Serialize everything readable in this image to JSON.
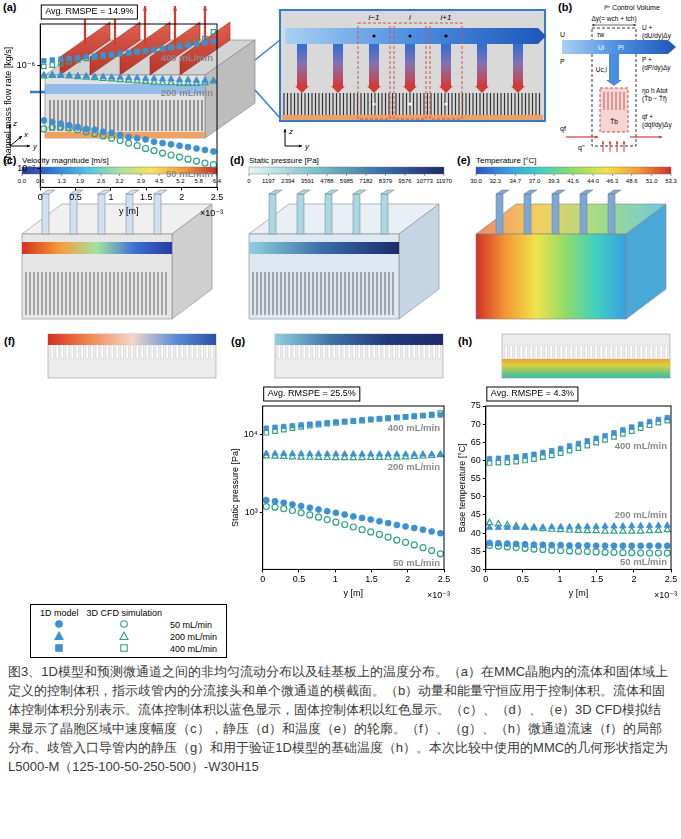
{
  "panels": {
    "a": {
      "letter": "(a)",
      "axes_3d": [
        "z",
        "x",
        "y"
      ],
      "axes_2d": [
        "z",
        "y"
      ],
      "cells": [
        "i−1",
        "i",
        "i+1"
      ]
    },
    "b": {
      "letter": "(b)",
      "title": "iᵗʰ Control Volume",
      "width": "Δy(= wch + tch)",
      "wall_shear": "τw",
      "inlet_velocity": "U",
      "outlet_velocity": "U + (dU/dy)Δy",
      "inlet_pressure": "P",
      "outlet_pressure": "P + (dP/dy)Δy",
      "cell_velocity": "Ui",
      "cell_pressure": "Pi",
      "channel_velocity": "Uc,i",
      "heat_transfer": "ηo h Atot (T̄b − T̄f)",
      "base_temperature": "T̄b",
      "inlet_heat": "qf",
      "outlet_heat": "qf + (dqf/dy)Δy",
      "heat_flux": "q''"
    },
    "c": {
      "letter": "(c)",
      "colorbar": {
        "title": "Velocity magnitude [m/s]",
        "range": [
          0,
          6.4
        ],
        "ticks": [
          {
            "value": 0,
            "label": "0.0"
          },
          0.6,
          1.3,
          1.9,
          2.6,
          3.2,
          3.9,
          4.5,
          5.2,
          5.8,
          6.4
        ]
      }
    },
    "d": {
      "letter": "(d)",
      "colorbar": {
        "title": "Static pressure [Pa]",
        "range": [
          0,
          11970
        ],
        "ticks": [
          0,
          1197,
          2394,
          3591,
          4788,
          5985,
          7182,
          8379,
          9576,
          10773,
          11970
        ]
      }
    },
    "e": {
      "letter": "(e)",
      "colorbar": {
        "title": "Temperature [°C]",
        "range": [
          30,
          53.3
        ],
        "ticks": [
          {
            "value": 30,
            "label": "30.0"
          },
          32.3,
          34.7,
          {
            "value": 37,
            "label": "37.0"
          },
          39.3,
          41.6,
          {
            "value": 44,
            "label": "44.0"
          },
          46.3,
          48.6,
          {
            "value": 51,
            "label": "51.0"
          },
          53.3
        ]
      }
    }
  },
  "chart_data": [
    {
      "type": "scatter",
      "panel": "(f)",
      "annotation": "Avg. RMSPE = 14.9%",
      "x_label": "y [m]",
      "x_unit_multiplier": "×10⁻³",
      "y_label": "Channel mass flow rate [kg/s]",
      "log": "y",
      "grid": false,
      "legend": "bottom",
      "xlim": [
        0,
        2.5
      ],
      "xticks": [
        0,
        0.5,
        1,
        1.5,
        2,
        2.5
      ],
      "ylim": [
        6.5e-08,
        2.5e-06
      ],
      "yticks": [
        {
          "value": 1e-07,
          "label": "10⁻⁷"
        },
        {
          "value": 1e-06,
          "label": "10⁻⁶"
        }
      ],
      "x": [
        0.05,
        0.17,
        0.29,
        0.41,
        0.53,
        0.65,
        0.77,
        0.89,
        1.01,
        1.13,
        1.25,
        1.37,
        1.49,
        1.61,
        1.73,
        1.85,
        1.97,
        2.09,
        2.21,
        2.33,
        2.45
      ],
      "series": [
        {
          "name": "1D model",
          "group": "50 mL/min",
          "color": "#3d8fd6",
          "marker": "circle",
          "values": [
            2.9e-07,
            2.8e-07,
            2.7e-07,
            2.6e-07,
            2.5e-07,
            2.4e-07,
            2.35e-07,
            2.25e-07,
            2.2e-07,
            2.1e-07,
            2e-07,
            1.95e-07,
            1.9e-07,
            1.8e-07,
            1.75e-07,
            1.7e-07,
            1.65e-07,
            1.6e-07,
            1.55e-07,
            1.5e-07,
            1.45e-07
          ]
        },
        {
          "name": "3D CFD simulation",
          "group": "50 mL/min",
          "color": "#2ea383",
          "marker": "open_circle",
          "values": [
            2.4e-07,
            2.5e-07,
            2.5e-07,
            2.45e-07,
            2.35e-07,
            2.25e-07,
            2.15e-07,
            2.05e-07,
            1.95e-07,
            1.85e-07,
            1.75e-07,
            1.65e-07,
            1.55e-07,
            1.48e-07,
            1.4e-07,
            1.34e-07,
            1.28e-07,
            1.22e-07,
            1.17e-07,
            1.12e-07,
            1.08e-07
          ]
        },
        {
          "name": "1D model",
          "group": "200 mL/min",
          "color": "#3d8fd6",
          "marker": "triangle",
          "values": [
            8e-07,
            8e-07,
            7.9e-07,
            7.9e-07,
            7.8e-07,
            7.8e-07,
            7.7e-07,
            7.7e-07,
            7.6e-07,
            7.6e-07,
            7.5e-07,
            7.5e-07,
            7.4e-07,
            7.4e-07,
            7.3e-07,
            7.3e-07,
            7.2e-07,
            7.2e-07,
            7.1e-07,
            7.1e-07,
            7e-07
          ]
        },
        {
          "name": "3D CFD simulation",
          "group": "200 mL/min",
          "color": "#2ea383",
          "marker": "open_triangle",
          "values": [
            7.8e-07,
            7.9e-07,
            7.9e-07,
            7.8e-07,
            7.7e-07,
            7.6e-07,
            7.5e-07,
            7.4e-07,
            7.3e-07,
            7.2e-07,
            7.1e-07,
            7e-07,
            6.9e-07,
            6.8e-07,
            6.7e-07,
            6.7e-07,
            6.6e-07,
            6.6e-07,
            6.6e-07,
            6.7e-07,
            7e-07
          ]
        },
        {
          "name": "1D model",
          "group": "400 mL/min",
          "color": "#3d8fd6",
          "marker": "square",
          "values": [
            1.1e-06,
            1.12e-06,
            1.14e-06,
            1.16e-06,
            1.18e-06,
            1.2e-06,
            1.22e-06,
            1.25e-06,
            1.27e-06,
            1.3e-06,
            1.32e-06,
            1.35e-06,
            1.38e-06,
            1.41e-06,
            1.44e-06,
            1.47e-06,
            1.51e-06,
            1.55e-06,
            1.59e-06,
            1.64e-06,
            1.7e-06
          ]
        },
        {
          "name": "3D CFD simulation",
          "group": "400 mL/min",
          "color": "#2ea383",
          "marker": "open_square",
          "values": [
            9.7e-07,
            1e-06,
            1.04e-06,
            1.08e-06,
            1.12e-06,
            1.16e-06,
            1.19e-06,
            1.22e-06,
            1.25e-06,
            1.28e-06,
            1.31e-06,
            1.34e-06,
            1.37e-06,
            1.4e-06,
            1.44e-06,
            1.48e-06,
            1.53e-06,
            1.59e-06,
            1.67e-06,
            1.8e-06,
            2.1e-06
          ]
        }
      ]
    },
    {
      "type": "scatter",
      "panel": "(g)",
      "annotation": "Avg. RMSPE = 25.5%",
      "x_label": "y [m]",
      "x_unit_multiplier": "×10⁻³",
      "y_label": "Static pressure [Pa]",
      "log": "y",
      "grid": false,
      "xlim": [
        0,
        2.5
      ],
      "xticks": [
        0,
        0.5,
        1,
        1.5,
        2,
        2.5
      ],
      "ylim": [
        190,
        23000
      ],
      "yticks": [
        {
          "value": 1000,
          "label": "10³"
        },
        {
          "value": 10000,
          "label": "10⁴"
        }
      ],
      "x": [
        0.05,
        0.17,
        0.29,
        0.41,
        0.53,
        0.65,
        0.77,
        0.89,
        1.01,
        1.13,
        1.25,
        1.37,
        1.49,
        1.61,
        1.73,
        1.85,
        1.97,
        2.09,
        2.21,
        2.33,
        2.45
      ],
      "series": [
        {
          "name": "1D model",
          "group": "50 mL/min",
          "color": "#3d8fd6",
          "marker": "circle",
          "values": [
            1450,
            1400,
            1340,
            1280,
            1220,
            1160,
            1100,
            1050,
            1000,
            950,
            900,
            860,
            820,
            780,
            740,
            700,
            670,
            640,
            610,
            580,
            550
          ]
        },
        {
          "name": "3D CFD simulation",
          "group": "50 mL/min",
          "color": "#2ea383",
          "marker": "open_circle",
          "values": [
            1200,
            1180,
            1130,
            1070,
            1000,
            940,
            880,
            820,
            760,
            710,
            660,
            610,
            570,
            530,
            490,
            450,
            420,
            390,
            360,
            330,
            300
          ]
        },
        {
          "name": "1D model",
          "group": "200 mL/min",
          "color": "#3d8fd6",
          "marker": "triangle",
          "values": [
            5700,
            5700,
            5680,
            5660,
            5650,
            5640,
            5630,
            5620,
            5610,
            5600,
            5600,
            5590,
            5590,
            5580,
            5580,
            5580,
            5570,
            5570,
            5570,
            5570,
            5560
          ]
        },
        {
          "name": "3D CFD simulation",
          "group": "200 mL/min",
          "color": "#2ea383",
          "marker": "open_triangle",
          "values": [
            5300,
            5250,
            5200,
            5150,
            5100,
            5080,
            5060,
            5040,
            5030,
            5020,
            5020,
            5030,
            5040,
            5060,
            5080,
            5110,
            5150,
            5200,
            5270,
            5350,
            5500
          ]
        },
        {
          "name": "1D model",
          "group": "400 mL/min",
          "color": "#3d8fd6",
          "marker": "square",
          "values": [
            12000,
            12300,
            12600,
            12900,
            13200,
            13500,
            13800,
            14100,
            14400,
            14700,
            15000,
            15300,
            15600,
            15900,
            16200,
            16500,
            16800,
            17100,
            17300,
            17500,
            17700
          ]
        },
        {
          "name": "3D CFD simulation",
          "group": "400 mL/min",
          "color": "#2ea383",
          "marker": "open_square",
          "values": [
            10500,
            11000,
            11500,
            12000,
            12500,
            12900,
            13300,
            13700,
            14000,
            14400,
            14700,
            15000,
            15400,
            15700,
            16000,
            16300,
            16700,
            17000,
            17400,
            17900,
            18700
          ]
        }
      ]
    },
    {
      "type": "scatter",
      "panel": "(h)",
      "annotation": "Avg. RMSPE = 4.3%",
      "x_label": "y [m]",
      "x_unit_multiplier": "×10⁻³",
      "y_label": "Base temperature [°C]",
      "grid": false,
      "xlim": [
        0,
        2.5
      ],
      "xticks": [
        0,
        0.5,
        1,
        1.5,
        2,
        2.5
      ],
      "ylim": [
        30,
        75
      ],
      "yticks": [
        30,
        35,
        40,
        45,
        50,
        55,
        60,
        65,
        70,
        75
      ],
      "x": [
        0.05,
        0.17,
        0.29,
        0.41,
        0.53,
        0.65,
        0.77,
        0.89,
        1.01,
        1.13,
        1.25,
        1.37,
        1.49,
        1.61,
        1.73,
        1.85,
        1.97,
        2.09,
        2.21,
        2.33,
        2.45
      ],
      "series": [
        {
          "name": "1D model",
          "group": "50 mL/min",
          "color": "#3d8fd6",
          "marker": "circle",
          "values": [
            37.3,
            37.2,
            37.1,
            37.0,
            36.9,
            36.8,
            36.8,
            36.7,
            36.7,
            36.6,
            36.6,
            36.6,
            36.5,
            36.5,
            36.5,
            36.5,
            36.5,
            36.5,
            36.5,
            36.5,
            36.5
          ]
        },
        {
          "name": "3D CFD simulation",
          "group": "50 mL/min",
          "color": "#2ea383",
          "marker": "open_circle",
          "values": [
            36.6,
            36.4,
            36.2,
            36.0,
            35.8,
            35.6,
            35.5,
            35.3,
            35.2,
            35.1,
            35.0,
            34.9,
            34.8,
            34.7,
            34.7,
            34.6,
            34.6,
            34.5,
            34.5,
            34.5,
            34.5
          ]
        },
        {
          "name": "1D model",
          "group": "200 mL/min",
          "color": "#3d8fd6",
          "marker": "triangle",
          "values": [
            41.5,
            41.5,
            41.5,
            41.5,
            41.6,
            41.6,
            41.6,
            41.7,
            41.7,
            41.7,
            41.8,
            41.8,
            41.8,
            41.9,
            41.9,
            41.9,
            42.0,
            42.0,
            42.0,
            42.1,
            42.1
          ]
        },
        {
          "name": "3D CFD simulation",
          "group": "200 mL/min",
          "color": "#2ea383",
          "marker": "open_triangle",
          "values": [
            42.8,
            42.5,
            42.2,
            41.9,
            41.6,
            41.4,
            41.2,
            41.0,
            40.9,
            40.8,
            40.7,
            40.6,
            40.6,
            40.5,
            40.5,
            40.5,
            40.5,
            40.5,
            40.6,
            40.7,
            40.9
          ]
        },
        {
          "name": "1D model",
          "group": "400 mL/min",
          "color": "#3d8fd6",
          "marker": "square",
          "values": [
            60.5,
            60.6,
            60.8,
            61.0,
            61.3,
            61.7,
            62.2,
            62.7,
            63.3,
            64.0,
            64.7,
            65.4,
            66.1,
            66.8,
            67.6,
            68.4,
            69.2,
            70.0,
            70.7,
            71.3,
            71.8
          ]
        },
        {
          "name": "3D CFD simulation",
          "group": "400 mL/min",
          "color": "#2ea383",
          "marker": "open_square",
          "values": [
            59.3,
            59.4,
            59.5,
            59.7,
            60.0,
            60.4,
            60.9,
            61.4,
            62.0,
            62.7,
            63.4,
            64.1,
            64.9,
            65.7,
            66.5,
            67.3,
            68.1,
            68.9,
            69.7,
            70.4,
            71.0
          ]
        }
      ]
    }
  ],
  "caption": "图3、1D模型和预测微通道之间的非均匀流动分布以及硅基板上的温度分布。（a）在MMC晶胞内的流体和固体域上定义的控制体积，指示歧管内的分流接头和单个微通道的横截面。（b）动量和能量守恒应用于控制体积。流体和固体控制体积分别表示。流体控制体积以蓝色显示，固体控制体积以红色显示。（c）、（d）、（e）3D CFD模拟结果显示了晶胞区域中速度幅度（c），静压（d）和温度（e）的轮廓。（f）、（g）、（h）微通道流速（f）的局部分布、歧管入口导管内的静压（g）和用于验证1D模型的基础温度（h）。本次比较中使用的MMC的几何形状指定为L5000-M（125-100-50-250-500）-W30H15"
}
